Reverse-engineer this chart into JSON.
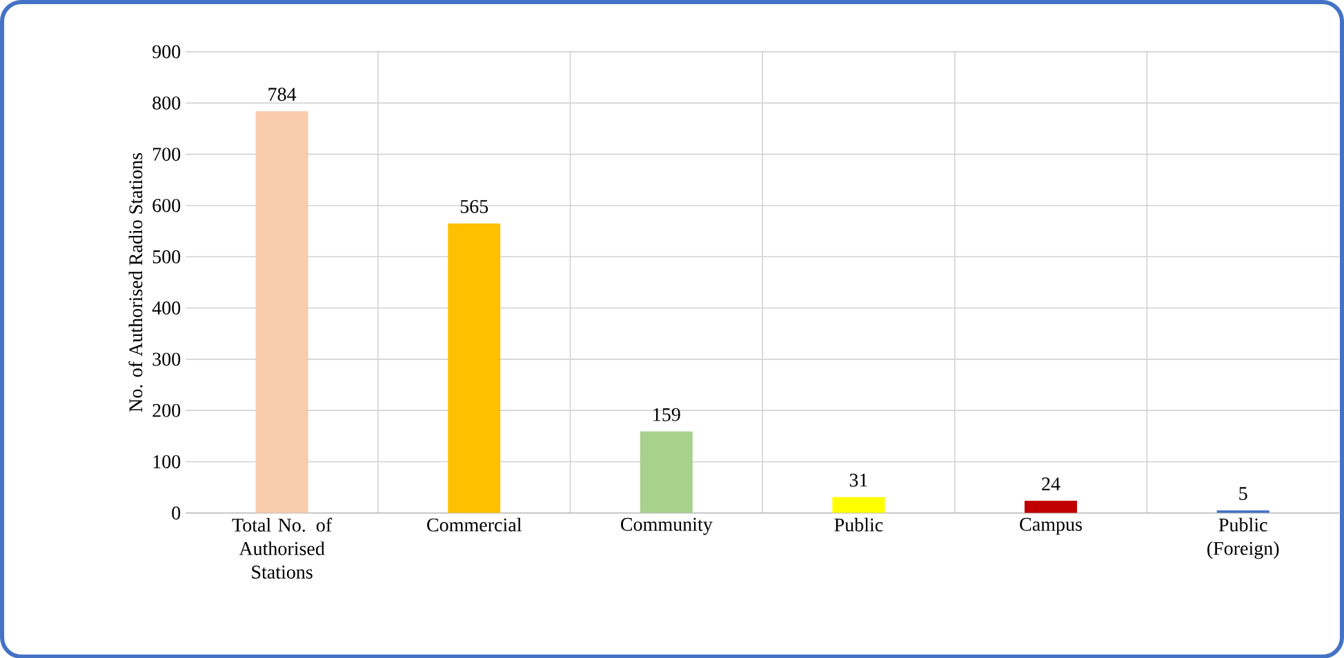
{
  "chart_data": {
    "type": "bar",
    "ylabel": "No. of Authorised Radio Stations",
    "categories": [
      "Total No. of Authorised Stations",
      "Commercial",
      "Community",
      "Public",
      "Campus",
      "Public (Foreign)"
    ],
    "values": [
      784,
      565,
      159,
      31,
      24,
      5
    ],
    "colors": [
      "#f8cbad",
      "#ffc000",
      "#a9d18e",
      "#ffff00",
      "#c00000",
      "#4472c4"
    ],
    "ylim": [
      0,
      900
    ],
    "yticks": [
      0,
      100,
      200,
      300,
      400,
      500,
      600,
      700,
      800,
      900
    ],
    "grid": true,
    "data_labels": true
  }
}
